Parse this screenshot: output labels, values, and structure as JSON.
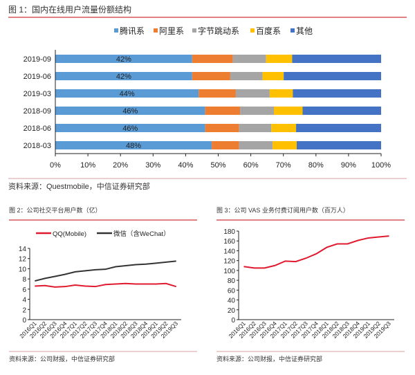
{
  "colors": {
    "tencent": "#5B9BD5",
    "ali": "#ED7D31",
    "bytedance": "#A5A5A5",
    "baidu": "#FFC000",
    "other": "#4472C4",
    "rule": "#C00000",
    "qq": "#E0192F",
    "wechat": "#333333",
    "vas": "#E0192F"
  },
  "chart_data": [
    {
      "type": "bar",
      "orientation": "horizontal",
      "stacked": true,
      "title": "图 1：国内在线用户流量份额结构",
      "categories": [
        "2019-09",
        "2019-06",
        "2019-03",
        "2018-09",
        "2018-06",
        "2018-03"
      ],
      "series": [
        {
          "name": "腾讯系",
          "values": [
            42,
            42,
            44,
            46,
            46,
            48
          ],
          "labels": [
            "42%",
            "42%",
            "44%",
            "46%",
            "46%",
            "48%"
          ]
        },
        {
          "name": "阿里系",
          "values": [
            12.5,
            11.7,
            11.4,
            10.7,
            10.4,
            8.4
          ]
        },
        {
          "name": "字节跳动系",
          "values": [
            10.2,
            9.9,
            10.4,
            10.4,
            9.9,
            10.3
          ]
        },
        {
          "name": "百度系",
          "values": [
            8,
            6.5,
            7.1,
            8.8,
            7.6,
            7.4
          ]
        },
        {
          "name": "其他",
          "values": [
            27.3,
            29.9,
            27.1,
            23.7,
            26.1,
            25.9
          ]
        }
      ],
      "xticks": [
        "0%",
        "10%",
        "20%",
        "30%",
        "40%",
        "50%",
        "60%",
        "70%",
        "80%",
        "90%",
        "100%"
      ],
      "xlim": [
        0,
        100
      ],
      "legend": "top",
      "source": "资料来源：Questmobile，中信证券研究部"
    },
    {
      "type": "line",
      "title": "图 2：公司社交平台用户数（亿）",
      "categories": [
        "2016Q1",
        "2016Q2",
        "2016Q3",
        "2016Q4",
        "2017Q1",
        "2017Q2",
        "2017Q3",
        "2017Q4",
        "2018Q1",
        "2018Q2",
        "2018Q3",
        "2018Q4",
        "2019Q1",
        "2019Q2",
        "2019Q3"
      ],
      "series": [
        {
          "name": "QQ(Mobile)",
          "values": [
            6.6,
            6.7,
            6.4,
            6.5,
            6.8,
            6.6,
            6.5,
            6.9,
            7.0,
            7.1,
            7.0,
            7.0,
            7.0,
            7.1,
            6.5
          ]
        },
        {
          "name": "微信（含WeChat）",
          "values": [
            7.6,
            8.1,
            8.5,
            8.9,
            9.4,
            9.6,
            9.8,
            9.9,
            10.4,
            10.6,
            10.8,
            10.9,
            11.1,
            11.3,
            11.5
          ]
        }
      ],
      "yticks": [
        "0",
        "2",
        "4",
        "6",
        "8",
        "10",
        "12",
        "14"
      ],
      "ylim": [
        0,
        14
      ],
      "legend": "top",
      "source": "资料来源：公司财报，中信证券研究部"
    },
    {
      "type": "line",
      "title": "图 3：公司 VAS 业务付费订阅用户数（百万人）",
      "categories": [
        "2016Q1",
        "2016Q2",
        "2016Q3",
        "2016Q4",
        "2017Q1",
        "2017Q2",
        "2017Q3",
        "2017Q4",
        "2018Q1",
        "2018Q2",
        "2018Q3",
        "2018Q4",
        "2019Q1",
        "2019Q2",
        "2019Q3"
      ],
      "series": [
        {
          "values": [
            108,
            105,
            105,
            110,
            119,
            118,
            125,
            134,
            147,
            154,
            154,
            161,
            166,
            168,
            170
          ]
        }
      ],
      "yticks": [
        "0",
        "20",
        "40",
        "60",
        "80",
        "100",
        "120",
        "140",
        "160",
        "180"
      ],
      "ylim": [
        0,
        180
      ],
      "source": "资料来源：公司财报，中信证券研究部"
    }
  ]
}
